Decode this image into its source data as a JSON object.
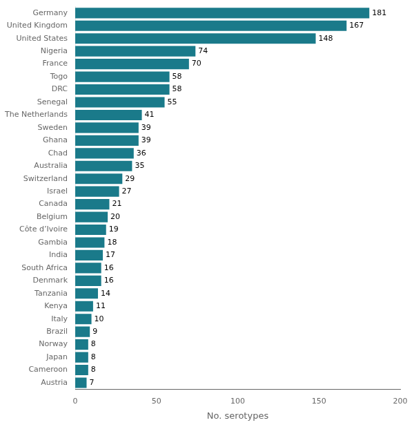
{
  "chart_data": {
    "type": "bar",
    "orientation": "horizontal",
    "categories": [
      "Germany",
      "United Kingdom",
      "United States",
      "Nigeria",
      "France",
      "Togo",
      "DRC",
      "Senegal",
      "The Netherlands",
      "Sweden",
      "Ghana",
      "Chad",
      "Australia",
      "Switzerland",
      "Israel",
      "Canada",
      "Belgium",
      "Côte d’Ivoire",
      "Gambia",
      "India",
      "South Africa",
      "Denmark",
      "Tanzania",
      "Kenya",
      "Italy",
      "Brazil",
      "Norway",
      "Japan",
      "Cameroon",
      "Austria"
    ],
    "values": [
      181,
      167,
      148,
      74,
      70,
      58,
      58,
      55,
      41,
      39,
      39,
      36,
      35,
      29,
      27,
      21,
      20,
      19,
      18,
      17,
      16,
      16,
      14,
      11,
      10,
      9,
      8,
      8,
      8,
      7
    ],
    "color": "#1a7a8a",
    "xlabel": "No. serotypes",
    "xlim": [
      0,
      200
    ],
    "xticks": [
      0,
      50,
      100,
      150,
      200
    ],
    "grid": false,
    "data_labels": true
  }
}
